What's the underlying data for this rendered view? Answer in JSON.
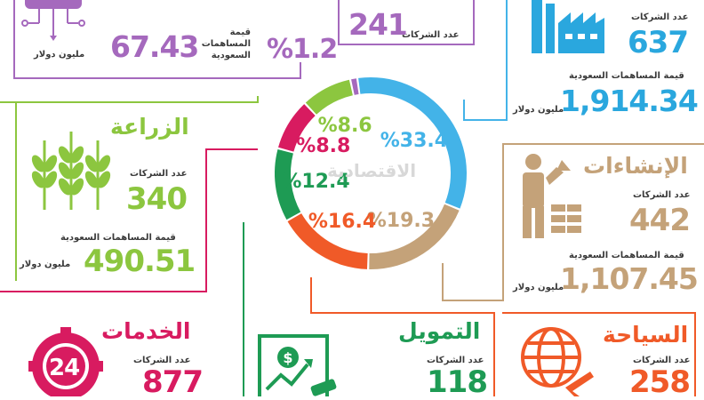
{
  "chart_data": {
    "type": "pie",
    "variant": "donut",
    "unit": "%",
    "slices": [
      {
        "label": "الصناعة",
        "value": 33.4,
        "text": "%33.4",
        "color": "#43b3e8"
      },
      {
        "label": "الإنشاءات",
        "value": 19.3,
        "text": "%19.3",
        "color": "#c4a279"
      },
      {
        "label": "التمويل",
        "value": 16.4,
        "text": "%16.4",
        "color": "#f05a28"
      },
      {
        "label": "الخدمات",
        "value": 12.4,
        "text": "%12.4",
        "color": "#1e9b54"
      },
      {
        "label": "",
        "value": 8.8,
        "text": "%8.8",
        "color": "#d81b60"
      },
      {
        "label": "الزراعة",
        "value": 8.6,
        "text": "%8.6",
        "color": "#8cc63f"
      },
      {
        "label": "",
        "value": 1.2,
        "text": "%1.2",
        "color": "#a569bd"
      }
    ]
  },
  "watermark": "الاقتصادية",
  "common": {
    "companies_label": "عدد الشركات",
    "contrib_label": "قيمة المساهمات السعودية",
    "contrib_label_l1": "قيمة",
    "contrib_label_l2": "المساهمات",
    "contrib_label_l3": "السعودية",
    "unit_label": "مليون دولار"
  },
  "sectors": {
    "industry": {
      "companies": "637",
      "contrib": "1,914.34",
      "color": "#2aa7de"
    },
    "construction": {
      "title": "الإنشاءات",
      "companies": "442",
      "contrib": "1,107.45",
      "color": "#c4a279"
    },
    "agriculture": {
      "title": "الزراعة",
      "companies": "340",
      "contrib": "490.51",
      "color": "#8cc63f"
    },
    "tech": {
      "contrib": "67.43",
      "share": "%1.2",
      "color": "#a569bd"
    },
    "top_middle": {
      "companies": "241",
      "color": "#a569bd"
    },
    "services": {
      "title": "الخدمات",
      "companies": "877",
      "icon_text": "24",
      "color": "#d81b60"
    },
    "finance": {
      "title": "التمويل",
      "companies": "118",
      "color": "#1e9b54"
    },
    "tourism": {
      "title": "السياحة",
      "companies": "258",
      "color": "#f05a28"
    }
  }
}
